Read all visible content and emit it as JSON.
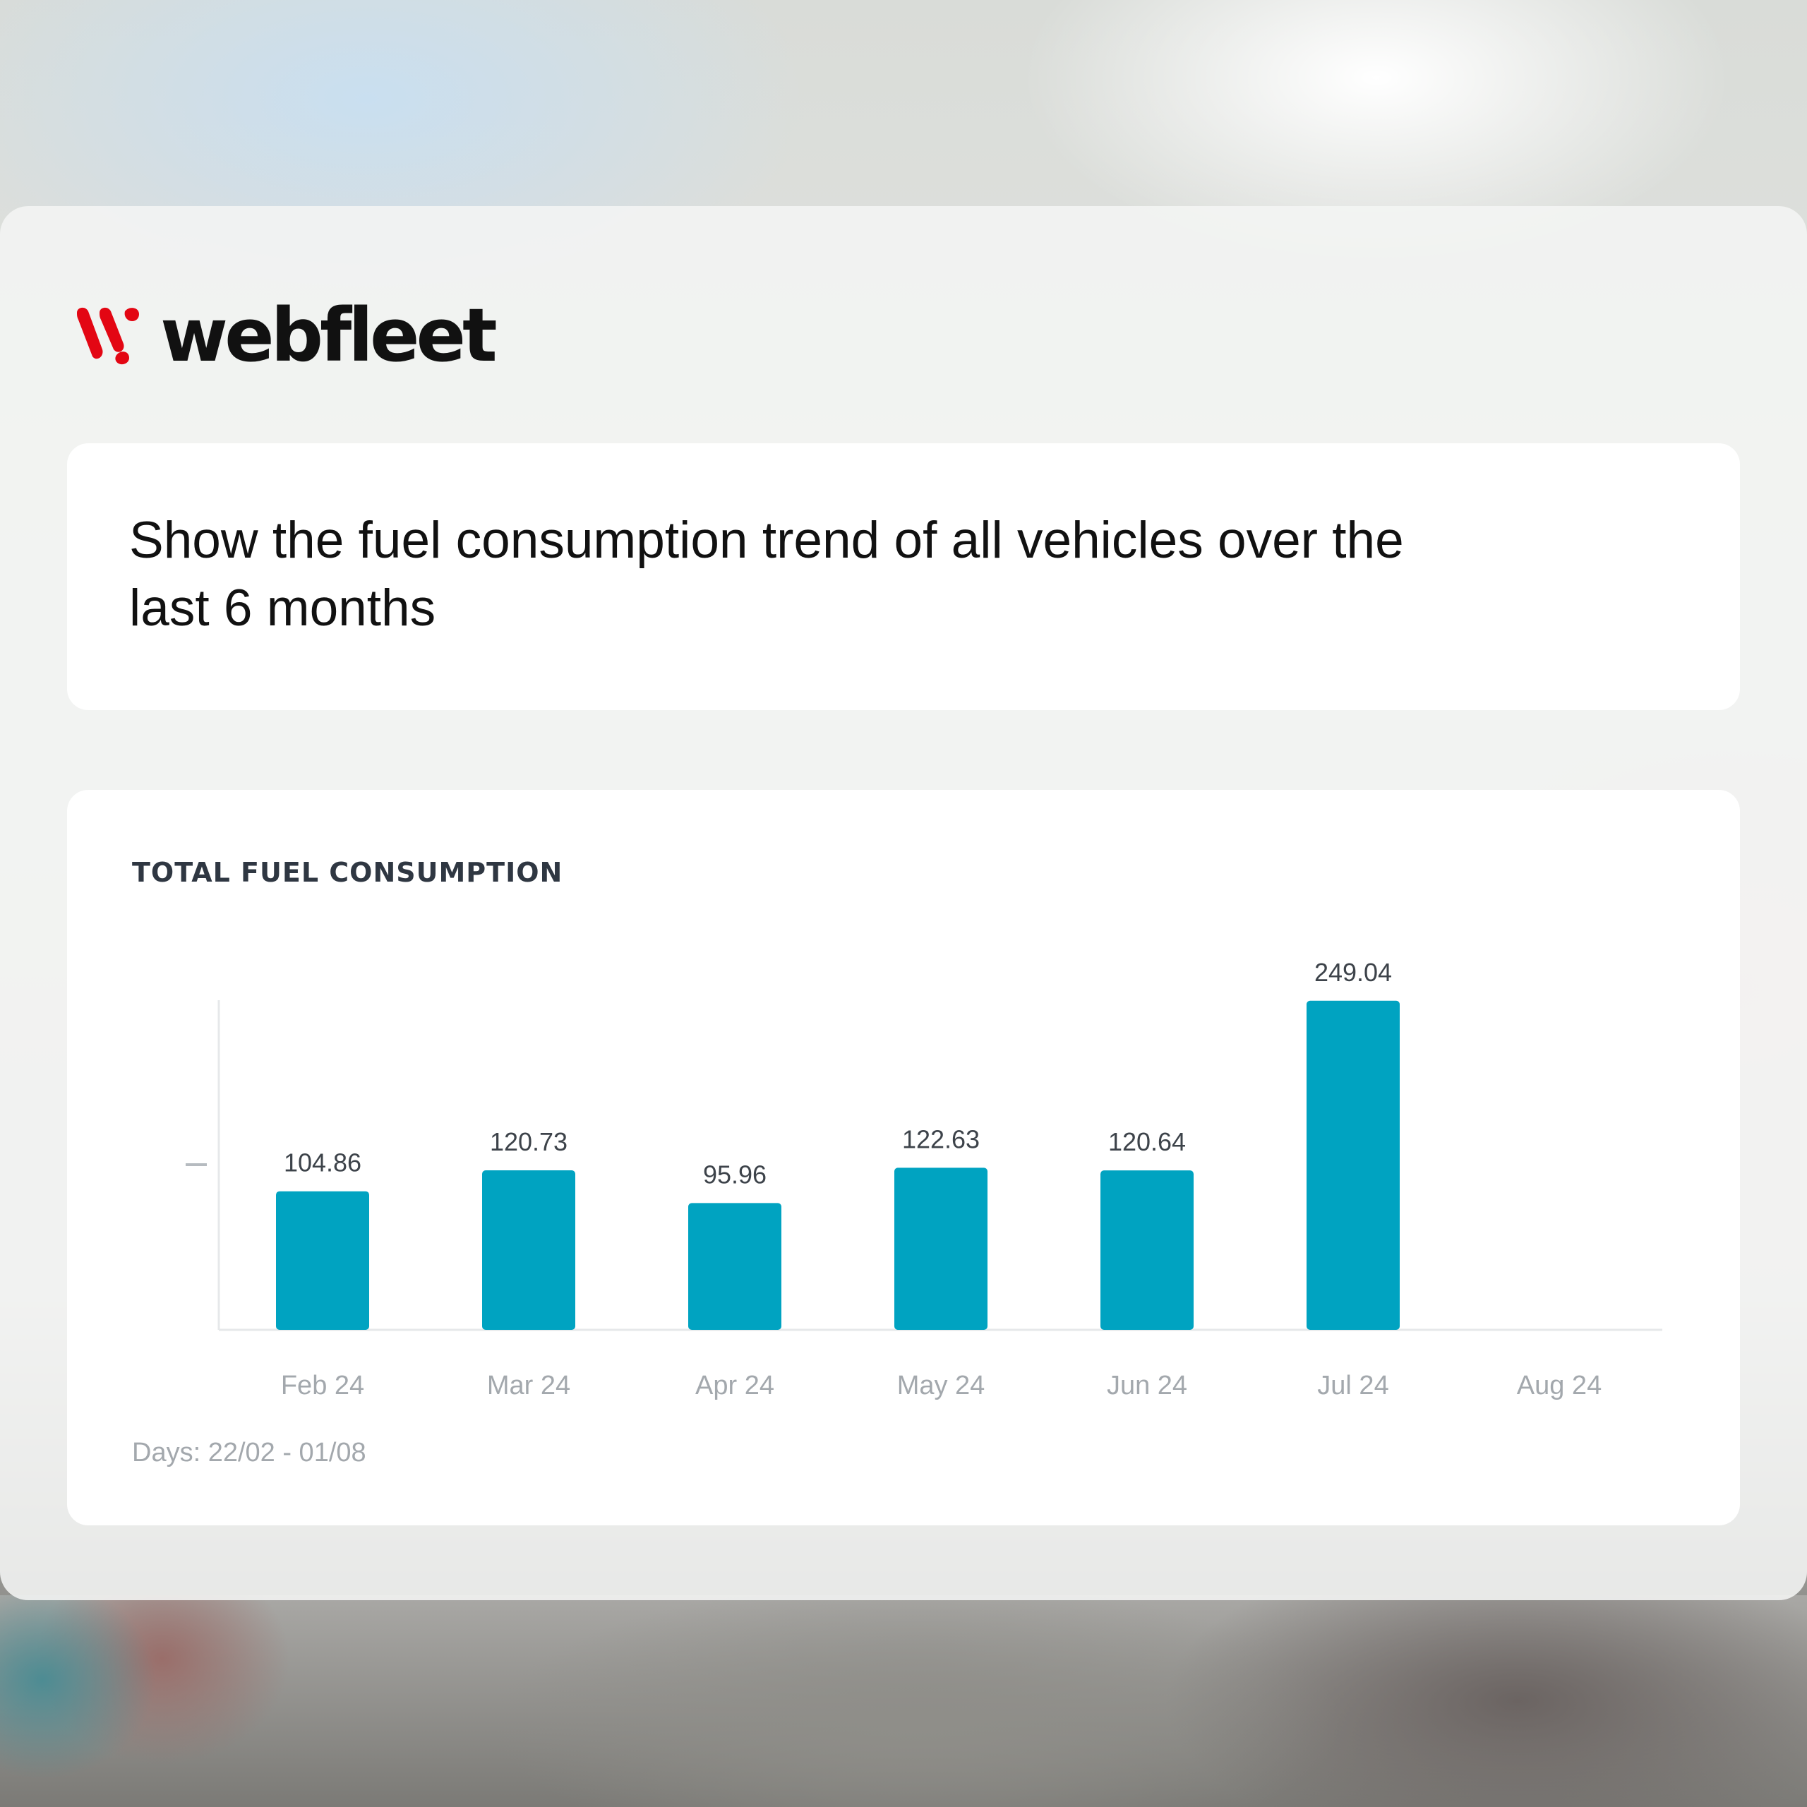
{
  "brand": {
    "name": "webfleet",
    "logo_mark": "webfleet-w-mark-icon",
    "logo_color": "#e30613"
  },
  "prompt": {
    "text": "Show the fuel consumption trend of all vehicles over the last 6 months"
  },
  "colors": {
    "bar": "#00a3c1",
    "title": "#2f3742",
    "muted": "#a3a8ad"
  },
  "chart_data": {
    "type": "bar",
    "title": "TOTAL FUEL CONSUMPTION",
    "categories": [
      "Feb 24",
      "Mar 24",
      "Apr 24",
      "May 24",
      "Jun 24",
      "Jul 24",
      "Aug 24"
    ],
    "values": [
      104.86,
      120.73,
      95.96,
      122.63,
      120.64,
      249.04,
      null
    ],
    "value_labels": [
      "104.86",
      "120.73",
      "95.96",
      "122.63",
      "120.64",
      "249.04",
      ""
    ],
    "ylim": [
      0,
      250
    ],
    "y_tick_values": [
      125
    ],
    "y_tick_labels": [
      ""
    ],
    "grid": false,
    "footer": "Days: 22/02 - 01/08"
  }
}
